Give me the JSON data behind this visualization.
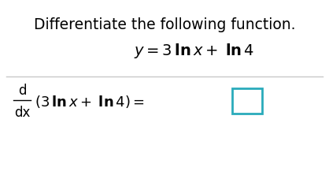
{
  "title": "Differentiate the following function.",
  "background_color": "#ffffff",
  "title_fontsize": 13.5,
  "eq_fontsize": 13,
  "deriv_fontsize": 12,
  "separator_color": "#c8c8c8",
  "box_color": "#2aabbb"
}
